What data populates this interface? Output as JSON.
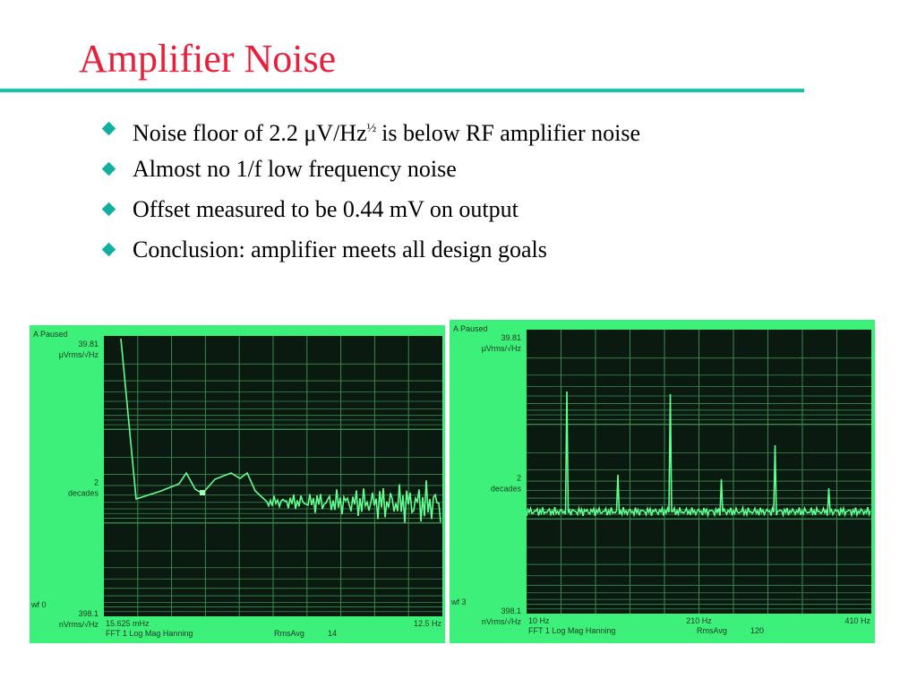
{
  "slide": {
    "title": "Amplifier Noise",
    "bullets": [
      {
        "text": "Noise floor of 2.2 μV/Hz",
        "sup": "½",
        "rest": "is below RF amplifier noise"
      },
      {
        "text": "Almost no 1/f low frequency noise"
      },
      {
        "text": "Offset measured to be 0.44 mV on output"
      },
      {
        "text": "Conclusion: amplifier meets all design goals"
      }
    ],
    "screens": [
      {
        "status": "A Paused",
        "top_value": "39.81",
        "top_unit": "μVrms/√Hz",
        "mid_value": "2",
        "mid_unit": "decades",
        "wf": "wf 0",
        "bottom_value": "398.1",
        "bottom_unit": "nVrms/√Hz",
        "x_start": "15.625 mHz",
        "x_end": "12.5 Hz",
        "mode": "FFT 1 Log Mag Hanning",
        "avg_label": "RmsAvg",
        "avg_count": "14"
      },
      {
        "status": "A Paused",
        "top_value": "39.81",
        "top_unit": "μVrms/√Hz",
        "mid_value": "2",
        "mid_unit": "decades",
        "wf": "wf 3",
        "bottom_value": "398.1",
        "bottom_unit": "nVrms/√Hz",
        "x_start": "10 Hz",
        "x_mid": "210 Hz",
        "x_end": "410 Hz",
        "mode": "FFT 1 Log Mag Hanning",
        "avg_label": "RmsAvg",
        "avg_count": "120"
      }
    ]
  }
}
